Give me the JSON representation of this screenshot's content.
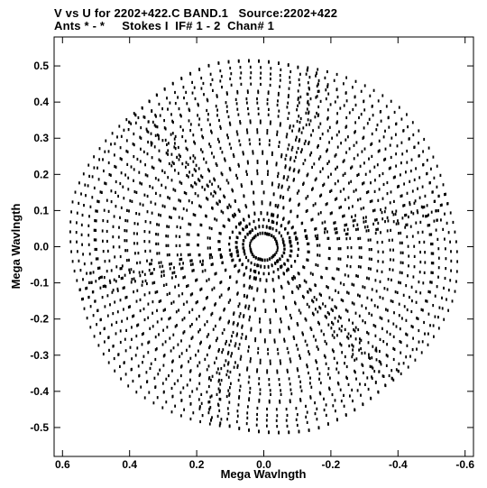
{
  "header": {
    "line1": "V vs U for 2202+422.C BAND.1   Source:2202+422",
    "line2": "Ants * - *     Stokes I  IF# 1 - 2  Chan# 1"
  },
  "chart_data": {
    "type": "scatter",
    "title": "V vs U for 2202+422.C BAND.1   Source:2202+422",
    "subtitle": "Ants * - *     Stokes I  IF# 1 - 2  Chan# 1",
    "xlabel": "Mega Wavlngth",
    "ylabel": "Mega Wavlngth",
    "xlim": [
      0.625,
      -0.625
    ],
    "ylim": [
      -0.58,
      0.58
    ],
    "x_reversed": true,
    "x_ticks": [
      0.6,
      0.4,
      0.2,
      0.0,
      -0.2,
      -0.4,
      -0.6
    ],
    "x_tick_labels": [
      "0.6",
      "0.4",
      "0.2",
      "0.0",
      "-0.2",
      "-0.4",
      "-0.6"
    ],
    "y_ticks": [
      0.5,
      0.4,
      0.3,
      0.2,
      0.1,
      0.0,
      -0.1,
      -0.2,
      -0.3,
      -0.4,
      -0.5
    ],
    "y_tick_labels": [
      "0.5",
      "0.4",
      "0.3",
      "0.2",
      "0.1",
      "0.0",
      "-0.1",
      "-0.2",
      "-0.3",
      "-0.4",
      "-0.5"
    ],
    "grid": false,
    "marker_color": "#000000",
    "series": [
      {
        "description_of_pattern": "uv-coverage tracks: concentric elliptical arcs in a six-pointed star pattern, point-symmetric about the origin",
        "baselines_uv_max": [
          0.04,
          0.06,
          0.08,
          0.1,
          0.13,
          0.16,
          0.19,
          0.22,
          0.25,
          0.28,
          0.31,
          0.34,
          0.37,
          0.4,
          0.43,
          0.46,
          0.49,
          0.52,
          0.55
        ],
        "arm_position_angles_deg": [
          15,
          75,
          135,
          195,
          255,
          315
        ]
      }
    ]
  }
}
